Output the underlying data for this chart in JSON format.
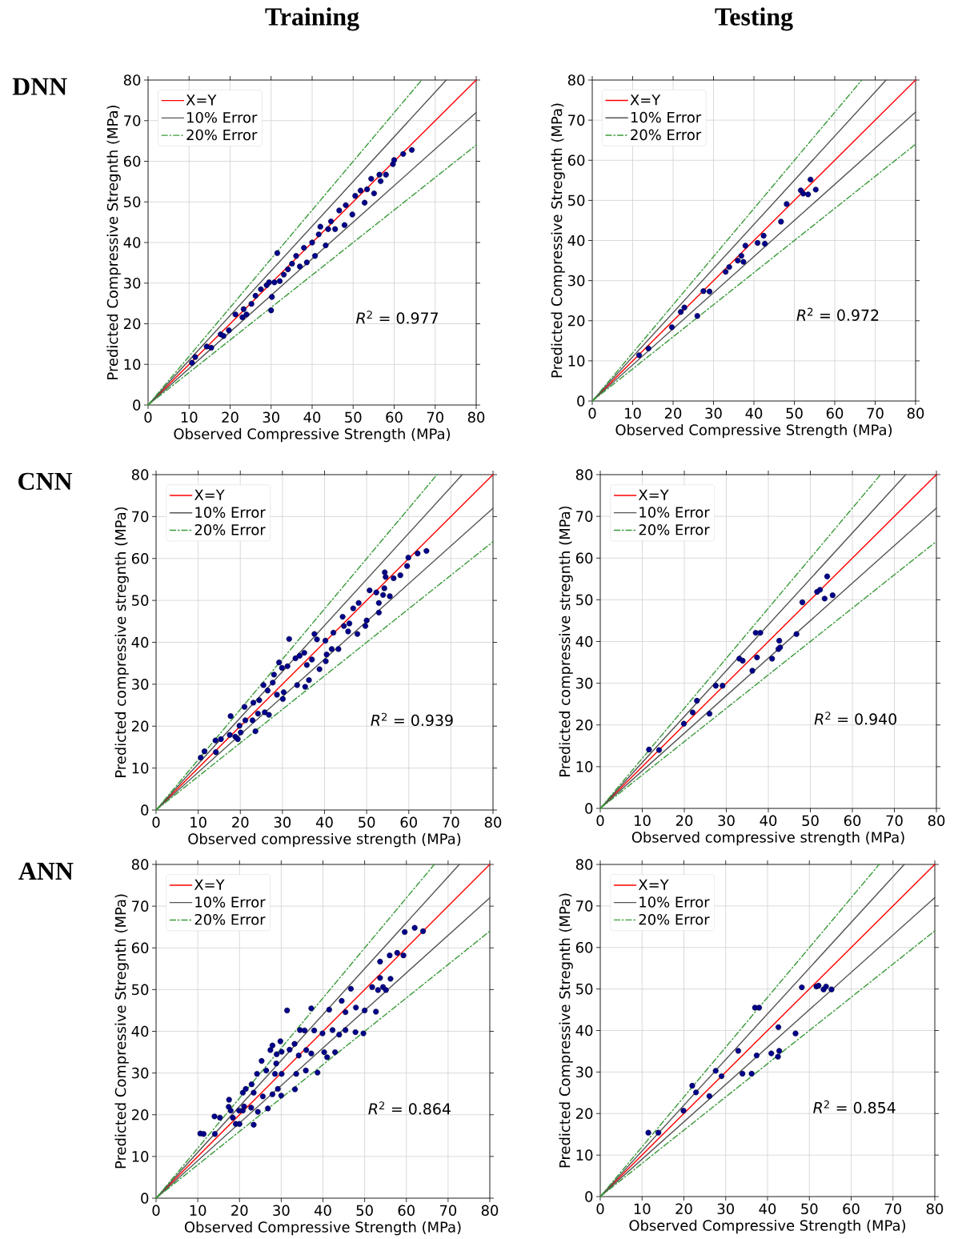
{
  "chart_data": [
    {
      "type": "scatter",
      "title": "Training",
      "xlabel": "Observed Compressive Strength (MPa)",
      "ylabel": "Predicted Compressive Stregnth (MPa)",
      "xlim": [
        0,
        80
      ],
      "ylim": [
        0,
        80
      ],
      "xticks": [
        0,
        10,
        20,
        30,
        40,
        50,
        60,
        70,
        80
      ],
      "yticks": [
        0,
        10,
        20,
        30,
        40,
        50,
        60,
        70,
        80
      ],
      "grid": true,
      "legend": "top left",
      "annotations": [
        "*R*$^{2}$ = 0.977",
        "DNN"
      ],
      "series": [
        {
          "name": "X=Y",
          "type": "line",
          "color": "#ff0000",
          "line_style": "solid",
          "marker": "none",
          "x": [
            0,
            80
          ],
          "values": [
            0,
            80
          ]
        },
        {
          "name": "10% Error",
          "type": "line",
          "color": "#555555",
          "line_style": "solid",
          "marker": "none",
          "x": [
            0,
            72.7
          ],
          "values": [
            0,
            80
          ]
        },
        {
          "type": "line",
          "color": "#555555",
          "line_style": "solid",
          "marker": "none",
          "x": [
            0,
            80
          ],
          "values": [
            0,
            72
          ]
        },
        {
          "name": "20% Error",
          "type": "line",
          "color": "#3a9a3a",
          "line_style": "dashdot",
          "marker": "none",
          "x": [
            0,
            66.7
          ],
          "values": [
            0,
            80
          ]
        },
        {
          "type": "line",
          "color": "#3a9a3a",
          "line_style": "dashdot",
          "marker": "none",
          "x": [
            0,
            80
          ],
          "values": [
            0,
            64
          ]
        },
        {
          "color": "#00008b",
          "marker": "circle",
          "x": [
            10.7,
            11.5,
            14.3,
            15.4,
            17.7,
            18.4,
            19.7,
            21.3,
            23.0,
            24.0,
            23.3,
            25.2,
            26.2,
            27.5,
            28.9,
            29.5,
            30.2,
            30.0,
            31.5,
            30.8,
            32.1,
            33.1,
            34.1,
            35.1,
            36.1,
            37.0,
            38.0,
            38.7,
            40.0,
            40.7,
            41.6,
            42.0,
            43.3,
            43.9,
            44.6,
            45.6,
            46.6,
            47.9,
            48.2,
            49.8,
            50.5,
            51.8,
            52.8,
            53.4,
            54.4,
            55.1,
            56.4,
            56.7,
            58.0,
            59.7,
            60.0,
            62.2,
            64.3
          ],
          "values": [
            10.4,
            11.8,
            14.4,
            14.1,
            17.4,
            17.0,
            18.4,
            22.3,
            21.6,
            22.3,
            23.6,
            24.9,
            26.9,
            28.5,
            29.5,
            30.2,
            26.6,
            23.3,
            37.4,
            30.2,
            30.5,
            32.1,
            33.4,
            34.8,
            36.7,
            34.1,
            38.7,
            35.1,
            40.0,
            36.7,
            42.0,
            43.9,
            39.3,
            43.3,
            45.2,
            43.3,
            47.9,
            44.3,
            49.2,
            46.9,
            51.5,
            52.8,
            49.8,
            53.1,
            55.7,
            52.1,
            56.7,
            55.1,
            56.7,
            59.3,
            60.3,
            61.8,
            62.8
          ]
        }
      ]
    },
    {
      "type": "scatter",
      "title": "Testing",
      "xlabel": "Observed Compressive Strength (MPa)",
      "ylabel": "Predicted Compressive Stregnth (MPa)",
      "xlim": [
        0,
        80
      ],
      "ylim": [
        0,
        80
      ],
      "xticks": [
        0,
        10,
        20,
        30,
        40,
        50,
        60,
        70,
        80
      ],
      "yticks": [
        0,
        10,
        20,
        30,
        40,
        50,
        60,
        70,
        80
      ],
      "grid": true,
      "legend": "top left",
      "annotations": [
        "*R*$^{2}$ = 0.972"
      ],
      "series": [
        {
          "name": "X=Y",
          "type": "line",
          "color": "#ff0000",
          "line_style": "solid",
          "marker": "none",
          "x": [
            0,
            80
          ],
          "values": [
            0,
            80
          ]
        },
        {
          "name": "10% Error",
          "type": "line",
          "color": "#555555",
          "line_style": "solid",
          "marker": "none",
          "x": [
            0,
            72.7
          ],
          "values": [
            0,
            80
          ]
        },
        {
          "type": "line",
          "color": "#555555",
          "line_style": "solid",
          "marker": "none",
          "x": [
            0,
            80
          ],
          "values": [
            0,
            72
          ]
        },
        {
          "name": "20% Error",
          "type": "line",
          "color": "#3a9a3a",
          "line_style": "dashdot",
          "marker": "none",
          "x": [
            0,
            66.7
          ],
          "values": [
            0,
            80
          ]
        },
        {
          "type": "line",
          "color": "#3a9a3a",
          "line_style": "dashdot",
          "marker": "none",
          "x": [
            0,
            80
          ],
          "values": [
            0,
            64
          ]
        },
        {
          "color": "#00008b",
          "marker": "circle",
          "x": [
            11.6,
            13.9,
            19.7,
            21.9,
            22.8,
            26.0,
            27.5,
            29.0,
            33.0,
            33.9,
            36.0,
            36.9,
            37.4,
            37.9,
            40.9,
            42.4,
            42.7,
            46.7,
            48.1,
            51.6,
            52.2,
            53.4,
            54.0,
            55.3
          ],
          "values": [
            11.4,
            13.1,
            18.4,
            22.2,
            23.3,
            21.2,
            27.4,
            27.3,
            32.2,
            33.4,
            35.0,
            36.2,
            34.7,
            38.7,
            39.4,
            41.2,
            39.2,
            44.7,
            49.1,
            52.5,
            51.7,
            51.5,
            55.2,
            52.7
          ]
        }
      ]
    },
    {
      "type": "scatter",
      "xlabel": "Observed compressive strength (MPa)",
      "ylabel": "Predicted compressive stregnth (MPa)",
      "xlim": [
        0,
        80
      ],
      "ylim": [
        0,
        80
      ],
      "xticks": [
        0,
        10,
        20,
        30,
        40,
        50,
        60,
        70,
        80
      ],
      "yticks": [
        0,
        10,
        20,
        30,
        40,
        50,
        60,
        70,
        80
      ],
      "grid": true,
      "legend": "top left",
      "annotations": [
        "*R*$^{2}$ = 0.939",
        "CNN"
      ],
      "series": [
        {
          "name": "X=Y",
          "type": "line",
          "color": "#ff0000",
          "line_style": "solid",
          "marker": "none",
          "x": [
            0,
            80
          ],
          "values": [
            0,
            80
          ]
        },
        {
          "name": "10% Error",
          "type": "line",
          "color": "#555555",
          "line_style": "solid",
          "marker": "none",
          "x": [
            0,
            72.7
          ],
          "values": [
            0,
            80
          ]
        },
        {
          "type": "line",
          "color": "#555555",
          "line_style": "solid",
          "marker": "none",
          "x": [
            0,
            80
          ],
          "values": [
            0,
            72
          ]
        },
        {
          "name": "20% Error",
          "type": "line",
          "color": "#3a9a3a",
          "line_style": "dashdot",
          "marker": "none",
          "x": [
            0,
            66.7
          ],
          "values": [
            0,
            80
          ]
        },
        {
          "type": "line",
          "color": "#3a9a3a",
          "line_style": "dashdot",
          "marker": "none",
          "x": [
            0,
            80
          ],
          "values": [
            0,
            64
          ]
        },
        {
          "color": "#00008b",
          "marker": "circle",
          "x": [
            10.6,
            11.5,
            14.1,
            15.4,
            14.2,
            17.7,
            17.5,
            18.8,
            19.4,
            20.1,
            19.8,
            21.0,
            21.2,
            22.9,
            23.1,
            23.6,
            24.2,
            24.5,
            25.5,
            25.8,
            26.8,
            26.5,
            27.7,
            28.0,
            28.7,
            29.2,
            29.9,
            30.1,
            30.3,
            31.2,
            31.6,
            33.5,
            33.1,
            34.1,
            35.2,
            35.8,
            36.3,
            35.4,
            37.0,
            37.6,
            38.2,
            38.8,
            40.2,
            40.5,
            40.3,
            41.7,
            42.1,
            43.3,
            44.3,
            44.6,
            45.9,
            45.6,
            46.8,
            47.8,
            48.1,
            49.7,
            50.0,
            50.7,
            52.3,
            52.9,
            52.9,
            53.9,
            54.2,
            54.3,
            54.5,
            55.5,
            56.4,
            58.0,
            59.6,
            59.9,
            62.1,
            64.2
          ],
          "values": [
            12.5,
            14.0,
            16.6,
            16.9,
            13.8,
            22.4,
            17.9,
            17.5,
            16.9,
            18.5,
            20.1,
            24.6,
            21.4,
            21.4,
            25.6,
            18.8,
            23.0,
            26.2,
            29.8,
            23.3,
            22.7,
            28.5,
            30.4,
            32.3,
            27.5,
            35.2,
            33.9,
            26.5,
            28.1,
            34.3,
            40.8,
            29.8,
            36.2,
            36.8,
            37.5,
            34.6,
            31.0,
            29.4,
            35.9,
            42.0,
            40.7,
            33.6,
            40.4,
            37.1,
            35.5,
            38.4,
            42.3,
            38.4,
            46.1,
            43.9,
            44.5,
            42.6,
            48.1,
            42.0,
            49.4,
            43.9,
            45.2,
            52.4,
            51.9,
            47.1,
            49.4,
            51.3,
            52.9,
            56.7,
            55.6,
            51.0,
            55.3,
            56.0,
            58.2,
            60.2,
            61.2,
            61.8
          ]
        }
      ]
    },
    {
      "type": "scatter",
      "xlabel": "Observed compressive strength (MPa)",
      "ylabel": "Predicted compressive stregnth (MPa)",
      "xlim": [
        0,
        80
      ],
      "ylim": [
        0,
        80
      ],
      "xticks": [
        0,
        10,
        20,
        30,
        40,
        50,
        60,
        70,
        80
      ],
      "yticks": [
        0,
        10,
        20,
        30,
        40,
        50,
        60,
        70,
        80
      ],
      "grid": true,
      "legend": "top left",
      "annotations": [
        "*R*$^{2}$ = 0.940"
      ],
      "series": [
        {
          "name": "X=Y",
          "type": "line",
          "color": "#ff0000",
          "line_style": "solid",
          "marker": "none",
          "x": [
            0,
            80
          ],
          "values": [
            0,
            80
          ]
        },
        {
          "name": "10% Error",
          "type": "line",
          "color": "#555555",
          "line_style": "solid",
          "marker": "none",
          "x": [
            0,
            72.7
          ],
          "values": [
            0,
            80
          ]
        },
        {
          "type": "line",
          "color": "#555555",
          "line_style": "solid",
          "marker": "none",
          "x": [
            0,
            80
          ],
          "values": [
            0,
            72
          ]
        },
        {
          "name": "20% Error",
          "type": "line",
          "color": "#3a9a3a",
          "line_style": "dashdot",
          "marker": "none",
          "x": [
            0,
            66.7
          ],
          "values": [
            0,
            80
          ]
        },
        {
          "type": "line",
          "color": "#3a9a3a",
          "line_style": "dashdot",
          "marker": "none",
          "x": [
            0,
            80
          ],
          "values": [
            0,
            64
          ]
        },
        {
          "color": "#00008b",
          "marker": "circle",
          "x": [
            11.6,
            14.0,
            19.9,
            22.0,
            23.0,
            26.0,
            27.5,
            29.1,
            33.1,
            33.9,
            36.2,
            37.0,
            38.1,
            37.3,
            40.9,
            42.6,
            42.4,
            42.8,
            46.7,
            48.1,
            51.6,
            52.3,
            53.4,
            54.0,
            55.3
          ],
          "values": [
            14.1,
            14.0,
            20.3,
            23.0,
            25.8,
            22.7,
            29.4,
            29.4,
            35.9,
            35.4,
            33.0,
            42.1,
            42.1,
            36.2,
            35.9,
            40.2,
            38.2,
            38.6,
            41.8,
            49.4,
            51.9,
            52.4,
            50.3,
            55.6,
            51.1
          ]
        }
      ]
    },
    {
      "type": "scatter",
      "xlabel": "Observed Compressive Strength (MPa)",
      "ylabel": "Predicted Compressive Stregnth (MPa)",
      "xlim": [
        0,
        80
      ],
      "ylim": [
        0,
        80
      ],
      "xticks": [
        0,
        10,
        20,
        30,
        40,
        50,
        60,
        70,
        80
      ],
      "yticks": [
        0,
        10,
        20,
        30,
        40,
        50,
        60,
        70,
        80
      ],
      "grid": true,
      "legend": "top left",
      "annotations": [
        "*R*$^{2}$ = 0.864",
        "ANN"
      ],
      "series": [
        {
          "name": "X=Y",
          "type": "line",
          "color": "#ff0000",
          "line_style": "solid",
          "marker": "none",
          "x": [
            0,
            80
          ],
          "values": [
            0,
            80
          ]
        },
        {
          "name": "10% Error",
          "type": "line",
          "color": "#555555",
          "line_style": "solid",
          "marker": "none",
          "x": [
            0,
            72.7
          ],
          "values": [
            0,
            80
          ]
        },
        {
          "type": "line",
          "color": "#555555",
          "line_style": "solid",
          "marker": "none",
          "x": [
            0,
            80
          ],
          "values": [
            0,
            72
          ]
        },
        {
          "name": "20% Error",
          "type": "line",
          "color": "#3a9a3a",
          "line_style": "dashdot",
          "marker": "none",
          "x": [
            0,
            66.7
          ],
          "values": [
            0,
            80
          ]
        },
        {
          "type": "line",
          "color": "#3a9a3a",
          "line_style": "dashdot",
          "marker": "none",
          "x": [
            0,
            80
          ],
          "values": [
            0,
            64
          ]
        },
        {
          "color": "#00008b",
          "marker": "circle",
          "x": [
            10.6,
            11.4,
            14.1,
            14.0,
            15.3,
            17.5,
            17.4,
            17.9,
            18.4,
            19.1,
            20.0,
            19.9,
            20.8,
            21.1,
            20.8,
            21.5,
            22.9,
            22.8,
            23.4,
            23.4,
            24.4,
            25.6,
            24.2,
            25.3,
            26.4,
            26.8,
            27.4,
            27.9,
            27.9,
            28.5,
            28.8,
            28.9,
            29.2,
            29.8,
            30.0,
            30.1,
            30.1,
            31.4,
            32.0,
            33.2,
            33.3,
            33.6,
            34.2,
            34.5,
            35.6,
            36.0,
            35.9,
            37.2,
            37.2,
            37.9,
            38.7,
            39.9,
            40.3,
            41.0,
            41.5,
            42.3,
            42.9,
            43.9,
            44.5,
            45.4,
            45.4,
            46.7,
            47.8,
            47.9,
            49.7,
            50.0,
            51.8,
            52.7,
            53.2,
            53.7,
            53.7,
            54.4,
            55.1,
            56.0,
            56.2,
            57.8,
            59.3,
            59.6,
            62.0,
            64.0
          ],
          "values": [
            15.5,
            15.4,
            15.4,
            19.6,
            19.3,
            23.6,
            21.9,
            21.0,
            19.3,
            17.8,
            17.8,
            21.0,
            21.0,
            22.0,
            25.3,
            26.2,
            27.3,
            21.7,
            25.3,
            17.6,
            20.7,
            24.4,
            29.8,
            32.9,
            30.6,
            21.5,
            35.5,
            36.6,
            24.9,
            29.8,
            32.3,
            34.5,
            26.2,
            37.6,
            24.6,
            29.8,
            35.1,
            45.0,
            35.6,
            37.0,
            26.1,
            29.8,
            34.2,
            40.3,
            40.2,
            35.5,
            30.6,
            34.7,
            45.5,
            40.2,
            30.1,
            39.5,
            35.0,
            33.8,
            45.2,
            40.3,
            35.0,
            39.2,
            47.3,
            44.6,
            40.3,
            50.2,
            39.8,
            45.7,
            39.5,
            45.0,
            50.6,
            44.7,
            49.9,
            56.7,
            52.8,
            50.6,
            49.9,
            58.2,
            52.6,
            58.8,
            58.2,
            63.8,
            64.8,
            64.0
          ]
        }
      ]
    },
    {
      "type": "scatter",
      "xlabel": "Observed Compressive Strength (MPa)",
      "ylabel": "Predicted Compressive Stregnth (MPa)",
      "xlim": [
        0,
        80
      ],
      "ylim": [
        0,
        80
      ],
      "xticks": [
        0,
        10,
        20,
        30,
        40,
        50,
        60,
        70,
        80
      ],
      "yticks": [
        0,
        10,
        20,
        30,
        40,
        50,
        60,
        70,
        80
      ],
      "grid": true,
      "legend": "top left",
      "annotations": [
        "*R*$^{2}$ = 0.854"
      ],
      "series": [
        {
          "name": "X=Y",
          "type": "line",
          "color": "#ff0000",
          "line_style": "solid",
          "marker": "none",
          "x": [
            0,
            80
          ],
          "values": [
            0,
            80
          ]
        },
        {
          "name": "10% Error",
          "type": "line",
          "color": "#555555",
          "line_style": "solid",
          "marker": "none",
          "x": [
            0,
            72.7
          ],
          "values": [
            0,
            80
          ]
        },
        {
          "type": "line",
          "color": "#555555",
          "line_style": "solid",
          "marker": "none",
          "x": [
            0,
            80
          ],
          "values": [
            0,
            72
          ]
        },
        {
          "name": "20% Error",
          "type": "line",
          "color": "#3a9a3a",
          "line_style": "dashdot",
          "marker": "none",
          "x": [
            0,
            66.7
          ],
          "values": [
            0,
            80
          ]
        },
        {
          "type": "line",
          "color": "#3a9a3a",
          "line_style": "dashdot",
          "marker": "none",
          "x": [
            0,
            80
          ],
          "values": [
            0,
            64
          ]
        },
        {
          "color": "#00008b",
          "marker": "circle",
          "x": [
            11.5,
            13.9,
            19.9,
            22.0,
            22.9,
            26.1,
            27.6,
            29.0,
            33.0,
            34.0,
            36.2,
            37.0,
            38.0,
            37.4,
            40.9,
            42.5,
            42.8,
            42.6,
            46.7,
            48.2,
            51.7,
            52.2,
            53.4,
            54.0,
            55.3
          ],
          "values": [
            15.4,
            15.4,
            20.7,
            26.7,
            25.1,
            24.2,
            30.3,
            29.0,
            35.1,
            29.6,
            29.6,
            45.5,
            45.5,
            34.0,
            34.5,
            33.7,
            35.1,
            40.8,
            39.3,
            50.4,
            50.6,
            50.8,
            49.9,
            50.6,
            49.9
          ]
        }
      ]
    }
  ]
}
